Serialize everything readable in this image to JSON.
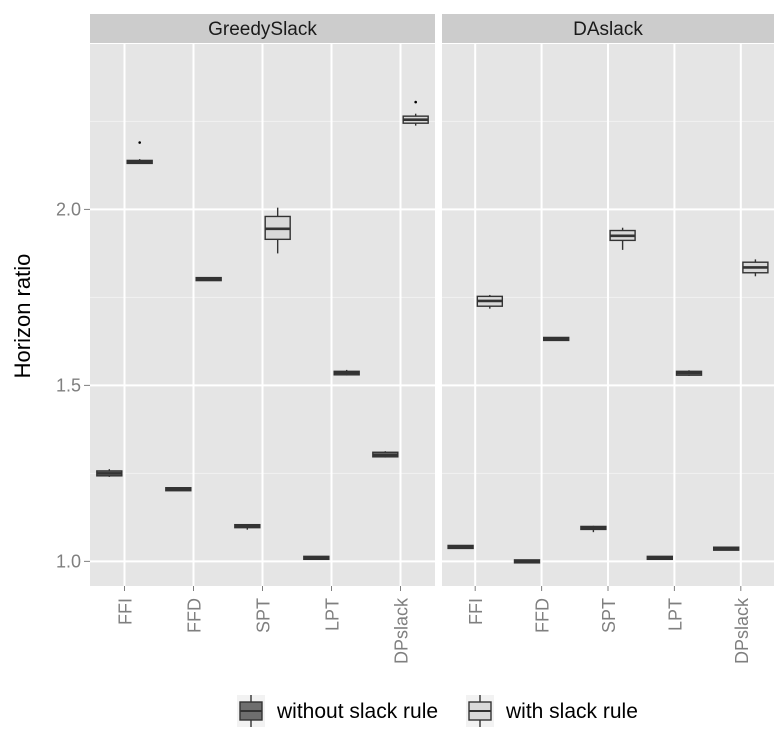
{
  "colors": {
    "panel_bg": "#E5E5E5",
    "strip_bg": "#CCCCCC",
    "grid_major": "#FFFFFF",
    "grid_minor": "#F2F2F2",
    "tick_text": "#7F7F7F",
    "without_slack_fill": "#6E6E6E",
    "with_slack_fill": "#D9D9D9",
    "box_line": "#333333"
  },
  "chart_data": {
    "type": "boxplot",
    "ylabel": "Horizon ratio",
    "ylim": [
      0.93,
      2.47
    ],
    "yticks": [
      1.0,
      1.5,
      2.0
    ],
    "ytick_labels": [
      "1.0",
      "1.5",
      "2.0"
    ],
    "grid": true,
    "legend": {
      "position": "bottom",
      "entries": [
        "without slack rule",
        "with slack rule"
      ]
    },
    "categories": [
      "FFI",
      "FFD",
      "SPT",
      "LPT",
      "DPslack"
    ],
    "facets": [
      {
        "title": "GreedySlack",
        "series": [
          {
            "name": "without slack rule",
            "boxes": [
              {
                "category": "FFI",
                "min": 1.24,
                "q1": 1.243,
                "median": 1.25,
                "q3": 1.257,
                "max": 1.262,
                "outliers": []
              },
              {
                "category": "FFD",
                "min": 1.204,
                "q1": 1.204,
                "median": 1.205,
                "q3": 1.207,
                "max": 1.207,
                "outliers": []
              },
              {
                "category": "SPT",
                "min": 1.09,
                "q1": 1.097,
                "median": 1.1,
                "q3": 1.104,
                "max": 1.106,
                "outliers": []
              },
              {
                "category": "LPT",
                "min": 1.009,
                "q1": 1.009,
                "median": 1.01,
                "q3": 1.011,
                "max": 1.011,
                "outliers": []
              },
              {
                "category": "DPslack",
                "min": 1.295,
                "q1": 1.297,
                "median": 1.302,
                "q3": 1.31,
                "max": 1.313,
                "outliers": []
              }
            ]
          },
          {
            "name": "with slack rule",
            "boxes": [
              {
                "category": "FFI",
                "min": 2.13,
                "q1": 2.132,
                "median": 2.135,
                "q3": 2.139,
                "max": 2.143,
                "outliers": [
                  2.19
                ]
              },
              {
                "category": "FFD",
                "min": 1.8,
                "q1": 1.8,
                "median": 1.802,
                "q3": 1.805,
                "max": 1.806,
                "outliers": []
              },
              {
                "category": "SPT",
                "min": 1.875,
                "q1": 1.915,
                "median": 1.945,
                "q3": 1.98,
                "max": 2.005,
                "outliers": []
              },
              {
                "category": "LPT",
                "min": 1.528,
                "q1": 1.53,
                "median": 1.535,
                "q3": 1.54,
                "max": 1.544,
                "outliers": []
              },
              {
                "category": "DPslack",
                "min": 2.238,
                "q1": 2.245,
                "median": 2.255,
                "q3": 2.265,
                "max": 2.272,
                "outliers": [
                  2.305
                ]
              }
            ]
          }
        ]
      },
      {
        "title": "DAslack",
        "series": [
          {
            "name": "without slack rule",
            "boxes": [
              {
                "category": "FFI",
                "min": 1.04,
                "q1": 1.04,
                "median": 1.041,
                "q3": 1.042,
                "max": 1.043,
                "outliers": []
              },
              {
                "category": "FFD",
                "min": 0.999,
                "q1": 0.999,
                "median": 1.0,
                "q3": 1.001,
                "max": 1.001,
                "outliers": []
              },
              {
                "category": "SPT",
                "min": 1.083,
                "q1": 1.091,
                "median": 1.095,
                "q3": 1.099,
                "max": 1.101,
                "outliers": []
              },
              {
                "category": "LPT",
                "min": 1.007,
                "q1": 1.008,
                "median": 1.01,
                "q3": 1.011,
                "max": 1.011,
                "outliers": []
              },
              {
                "category": "DPslack",
                "min": 1.035,
                "q1": 1.035,
                "median": 1.036,
                "q3": 1.037,
                "max": 1.037,
                "outliers": []
              }
            ]
          },
          {
            "name": "with slack rule",
            "boxes": [
              {
                "category": "FFI",
                "min": 1.718,
                "q1": 1.725,
                "median": 1.74,
                "q3": 1.753,
                "max": 1.757,
                "outliers": []
              },
              {
                "category": "FFD",
                "min": 1.63,
                "q1": 1.631,
                "median": 1.632,
                "q3": 1.634,
                "max": 1.635,
                "outliers": []
              },
              {
                "category": "SPT",
                "min": 1.885,
                "q1": 1.912,
                "median": 1.925,
                "q3": 1.94,
                "max": 1.948,
                "outliers": []
              },
              {
                "category": "LPT",
                "min": 1.527,
                "q1": 1.529,
                "median": 1.535,
                "q3": 1.54,
                "max": 1.543,
                "outliers": []
              },
              {
                "category": "DPslack",
                "min": 1.81,
                "q1": 1.82,
                "median": 1.835,
                "q3": 1.85,
                "max": 1.858,
                "outliers": []
              }
            ]
          }
        ]
      }
    ]
  }
}
